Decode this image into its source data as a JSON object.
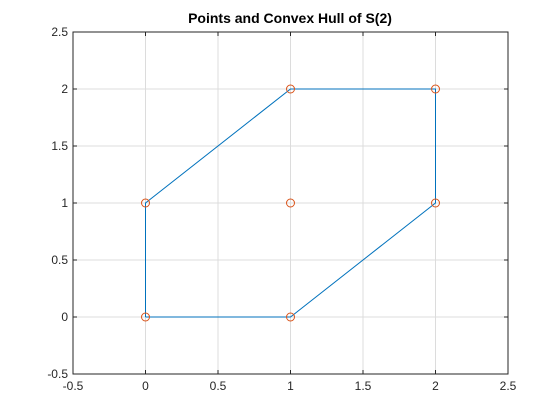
{
  "chart_data": {
    "type": "line",
    "title": "Points and Convex Hull of S(2)",
    "xlabel": "",
    "ylabel": "",
    "xlim": [
      -0.5,
      2.5
    ],
    "ylim": [
      -0.5,
      2.5
    ],
    "grid": true,
    "xticks": [
      -0.5,
      0,
      0.5,
      1,
      1.5,
      2,
      2.5
    ],
    "yticks": [
      -0.5,
      0,
      0.5,
      1,
      1.5,
      2,
      2.5
    ],
    "xtick_labels": [
      "-0.5",
      "0",
      "0.5",
      "1",
      "1.5",
      "2",
      "2.5"
    ],
    "ytick_labels": [
      "-0.5",
      "0",
      "0.5",
      "1",
      "1.5",
      "2",
      "2.5"
    ],
    "series": [
      {
        "kind": "scatter",
        "marker": "circle",
        "color": "#d95319",
        "x": [
          0,
          1,
          0,
          1,
          2,
          1,
          2
        ],
        "y": [
          0,
          0,
          1,
          1,
          1,
          2,
          2
        ]
      },
      {
        "kind": "line",
        "color": "#0072bd",
        "x": [
          0,
          1,
          2,
          2,
          1,
          0,
          0
        ],
        "y": [
          0,
          0,
          1,
          2,
          2,
          1,
          0
        ]
      }
    ]
  }
}
